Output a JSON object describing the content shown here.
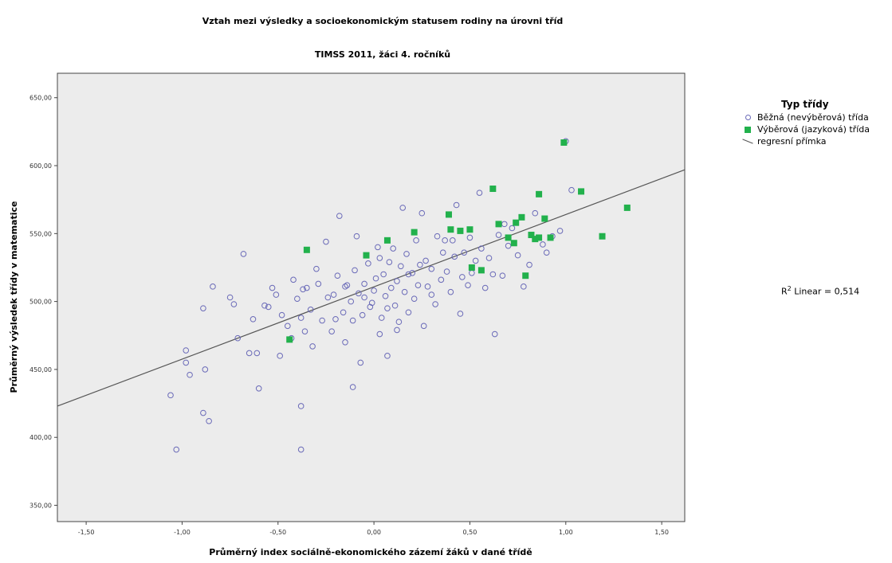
{
  "chart_data": {
    "type": "scatter",
    "title": "Vztah mezi výsledky a socioekonomickým statusem rodiny na úrovni tříd",
    "subtitle": "TIMSS 2011, žáci 4. ročníků",
    "xlabel": "Průměrný index sociálně-ekonomického zázemí žáků v dané třídě",
    "ylabel": "Průměrný výsledek třídy v matematice",
    "xlim": [
      -1.65,
      1.62
    ],
    "ylim": [
      338,
      668
    ],
    "x_ticks": [
      -1.5,
      -1.0,
      -0.5,
      0.0,
      0.5,
      1.0,
      1.5
    ],
    "x_tick_labels": [
      "-1,50",
      "-1,00",
      "-0,50",
      "0,00",
      "0,50",
      "1,00",
      "1,50"
    ],
    "y_ticks": [
      350,
      400,
      450,
      500,
      550,
      600,
      650
    ],
    "y_tick_labels": [
      "350,00",
      "400,00",
      "450,00",
      "500,00",
      "550,00",
      "600,00",
      "650,00"
    ],
    "grid": false,
    "legend_title": "Typ třídy",
    "legend_position": "right",
    "background_color": "#ececec",
    "series": [
      {
        "name": "Běžná (nevýběrová) třída",
        "marker": "circle",
        "color": "#6a6ab8",
        "points": [
          [
            -1.06,
            431
          ],
          [
            -1.03,
            391
          ],
          [
            -0.98,
            455
          ],
          [
            -0.96,
            446
          ],
          [
            -0.98,
            464
          ],
          [
            -0.89,
            418
          ],
          [
            -0.86,
            412
          ],
          [
            -0.88,
            450
          ],
          [
            -0.89,
            495
          ],
          [
            -0.84,
            511
          ],
          [
            -0.75,
            503
          ],
          [
            -0.73,
            498
          ],
          [
            -0.71,
            473
          ],
          [
            -0.68,
            535
          ],
          [
            -0.65,
            462
          ],
          [
            -0.63,
            487
          ],
          [
            -0.61,
            462
          ],
          [
            -0.6,
            436
          ],
          [
            -0.55,
            496
          ],
          [
            -0.53,
            510
          ],
          [
            -0.51,
            505
          ],
          [
            -0.49,
            460
          ],
          [
            -0.48,
            490
          ],
          [
            -0.45,
            482
          ],
          [
            -0.43,
            473
          ],
          [
            -0.42,
            516
          ],
          [
            -0.4,
            502
          ],
          [
            -0.38,
            488
          ],
          [
            -0.36,
            478
          ],
          [
            -0.35,
            510
          ],
          [
            -0.33,
            494
          ],
          [
            -0.32,
            467
          ],
          [
            -0.3,
            524
          ],
          [
            -0.29,
            513
          ],
          [
            -0.27,
            486
          ],
          [
            -0.25,
            544
          ],
          [
            -0.24,
            503
          ],
          [
            -0.22,
            478
          ],
          [
            -0.21,
            505
          ],
          [
            -0.19,
            519
          ],
          [
            -0.18,
            563
          ],
          [
            -0.16,
            492
          ],
          [
            -0.15,
            470
          ],
          [
            -0.14,
            512
          ],
          [
            -0.12,
            500
          ],
          [
            -0.11,
            486
          ],
          [
            -0.1,
            523
          ],
          [
            -0.09,
            548
          ],
          [
            -0.08,
            506
          ],
          [
            -0.07,
            455
          ],
          [
            -0.06,
            490
          ],
          [
            -0.05,
            513
          ],
          [
            -0.03,
            528
          ],
          [
            -0.02,
            496
          ],
          [
            -0.01,
            499
          ],
          [
            0.0,
            508
          ],
          [
            0.01,
            517
          ],
          [
            0.02,
            540
          ],
          [
            0.03,
            476
          ],
          [
            0.04,
            488
          ],
          [
            0.05,
            520
          ],
          [
            0.06,
            504
          ],
          [
            0.07,
            460
          ],
          [
            0.08,
            529
          ],
          [
            0.09,
            510
          ],
          [
            0.1,
            539
          ],
          [
            0.11,
            497
          ],
          [
            0.12,
            515
          ],
          [
            0.13,
            485
          ],
          [
            0.14,
            526
          ],
          [
            0.15,
            569
          ],
          [
            0.16,
            507
          ],
          [
            0.17,
            535
          ],
          [
            0.18,
            492
          ],
          [
            0.2,
            521
          ],
          [
            0.21,
            502
          ],
          [
            0.22,
            545
          ],
          [
            0.23,
            512
          ],
          [
            0.25,
            565
          ],
          [
            0.26,
            482
          ],
          [
            0.27,
            530
          ],
          [
            0.28,
            511
          ],
          [
            0.3,
            524
          ],
          [
            0.32,
            498
          ],
          [
            0.33,
            548
          ],
          [
            0.35,
            516
          ],
          [
            0.36,
            536
          ],
          [
            0.38,
            522
          ],
          [
            0.4,
            507
          ],
          [
            0.41,
            545
          ],
          [
            0.42,
            533
          ],
          [
            0.43,
            571
          ],
          [
            0.45,
            491
          ],
          [
            0.46,
            518
          ],
          [
            0.47,
            536
          ],
          [
            0.49,
            512
          ],
          [
            0.5,
            547
          ],
          [
            0.51,
            521
          ],
          [
            0.53,
            530
          ],
          [
            0.55,
            580
          ],
          [
            0.56,
            539
          ],
          [
            0.58,
            510
          ],
          [
            0.6,
            532
          ],
          [
            0.62,
            520
          ],
          [
            0.63,
            476
          ],
          [
            0.65,
            549
          ],
          [
            0.67,
            519
          ],
          [
            0.68,
            557
          ],
          [
            0.7,
            541
          ],
          [
            0.72,
            554
          ],
          [
            0.75,
            534
          ],
          [
            0.78,
            511
          ],
          [
            0.81,
            527
          ],
          [
            0.84,
            565
          ],
          [
            0.88,
            542
          ],
          [
            0.9,
            536
          ],
          [
            0.93,
            548
          ],
          [
            0.97,
            552
          ],
          [
            1.0,
            618
          ],
          [
            1.03,
            582
          ],
          [
            -0.2,
            487
          ],
          [
            -0.05,
            503
          ],
          [
            0.18,
            520
          ],
          [
            0.3,
            505
          ],
          [
            -0.37,
            509
          ],
          [
            -0.57,
            497
          ],
          [
            0.07,
            495
          ],
          [
            0.24,
            527
          ],
          [
            -0.15,
            511
          ],
          [
            0.12,
            479
          ],
          [
            -0.38,
            391
          ],
          [
            -0.38,
            423
          ],
          [
            -0.11,
            437
          ],
          [
            0.03,
            532
          ],
          [
            0.37,
            545
          ]
        ]
      },
      {
        "name": "Výběrová (jazyková) třída",
        "marker": "square",
        "color": "#22b14c",
        "points": [
          [
            -0.35,
            538
          ],
          [
            -0.44,
            472
          ],
          [
            -0.04,
            534
          ],
          [
            0.07,
            545
          ],
          [
            0.21,
            551
          ],
          [
            0.39,
            564
          ],
          [
            0.4,
            553
          ],
          [
            0.45,
            552
          ],
          [
            0.5,
            553
          ],
          [
            0.51,
            525
          ],
          [
            0.56,
            523
          ],
          [
            0.62,
            583
          ],
          [
            0.65,
            557
          ],
          [
            0.7,
            547
          ],
          [
            0.73,
            543
          ],
          [
            0.74,
            558
          ],
          [
            0.77,
            562
          ],
          [
            0.79,
            519
          ],
          [
            0.82,
            549
          ],
          [
            0.84,
            546
          ],
          [
            0.86,
            547
          ],
          [
            0.86,
            579
          ],
          [
            0.89,
            561
          ],
          [
            0.92,
            547
          ],
          [
            0.99,
            617
          ],
          [
            1.08,
            581
          ],
          [
            1.19,
            548
          ],
          [
            1.32,
            569
          ]
        ]
      }
    ],
    "regression_line": {
      "label": "regresní přímka",
      "color": "#555555",
      "x": [
        -1.65,
        1.62
      ],
      "y": [
        423,
        597
      ]
    },
    "annotation": "Linear = 0,514"
  }
}
